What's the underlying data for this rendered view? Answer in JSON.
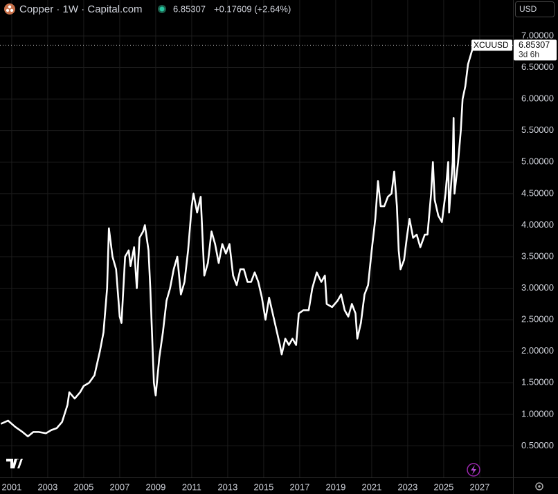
{
  "header": {
    "title": "Copper · 1W · Capital.com",
    "price": "6.85307",
    "change": "+0.17609 (+2.64%)",
    "currency": "USD"
  },
  "chart_data": {
    "type": "line",
    "x": [
      2000.4,
      2000.8,
      2001.2,
      2001.6,
      2001.9,
      2002.2,
      2002.5,
      2002.9,
      2003.2,
      2003.5,
      2003.8,
      2004.1,
      2004.2,
      2004.5,
      2004.8,
      2005.0,
      2005.3,
      2005.6,
      2005.9,
      2006.1,
      2006.3,
      2006.4,
      2006.6,
      2006.8,
      2007.0,
      2007.1,
      2007.3,
      2007.5,
      2007.6,
      2007.8,
      2007.95,
      2008.1,
      2008.3,
      2008.4,
      2008.6,
      2008.7,
      2008.9,
      2009.0,
      2009.2,
      2009.4,
      2009.6,
      2009.8,
      2010.0,
      2010.2,
      2010.4,
      2010.6,
      2010.8,
      2011.0,
      2011.1,
      2011.3,
      2011.5,
      2011.7,
      2011.9,
      2012.1,
      2012.3,
      2012.5,
      2012.7,
      2012.9,
      2013.1,
      2013.3,
      2013.5,
      2013.7,
      2013.9,
      2014.1,
      2014.3,
      2014.5,
      2014.7,
      2014.9,
      2015.1,
      2015.3,
      2015.5,
      2015.7,
      2015.9,
      2016.0,
      2016.2,
      2016.4,
      2016.6,
      2016.8,
      2016.95,
      2017.2,
      2017.5,
      2017.7,
      2017.95,
      2018.2,
      2018.4,
      2018.5,
      2018.8,
      2019.1,
      2019.3,
      2019.5,
      2019.7,
      2019.9,
      2020.1,
      2020.2,
      2020.4,
      2020.6,
      2020.8,
      2021.0,
      2021.2,
      2021.35,
      2021.5,
      2021.7,
      2021.9,
      2022.1,
      2022.25,
      2022.4,
      2022.5,
      2022.6,
      2022.8,
      2022.95,
      2023.1,
      2023.3,
      2023.5,
      2023.7,
      2023.95,
      2024.1,
      2024.3,
      2024.4,
      2024.5,
      2024.7,
      2024.9,
      2025.1,
      2025.25,
      2025.3,
      2025.5,
      2025.55,
      2025.6,
      2025.8,
      2025.95,
      2026.05,
      2026.2,
      2026.35,
      2026.66
    ],
    "series": [
      {
        "name": "XCUUSD",
        "color": "#ffffff",
        "values": [
          0.85,
          0.9,
          0.8,
          0.72,
          0.65,
          0.72,
          0.72,
          0.7,
          0.75,
          0.78,
          0.88,
          1.15,
          1.35,
          1.25,
          1.35,
          1.45,
          1.5,
          1.62,
          2.0,
          2.3,
          3.0,
          3.95,
          3.5,
          3.3,
          2.55,
          2.45,
          3.5,
          3.6,
          3.35,
          3.65,
          3.0,
          3.8,
          3.9,
          4.0,
          3.6,
          3.0,
          1.5,
          1.3,
          1.9,
          2.3,
          2.8,
          3.0,
          3.3,
          3.5,
          2.9,
          3.1,
          3.6,
          4.3,
          4.5,
          4.2,
          4.45,
          3.2,
          3.4,
          3.9,
          3.7,
          3.4,
          3.7,
          3.55,
          3.7,
          3.2,
          3.05,
          3.3,
          3.3,
          3.1,
          3.1,
          3.25,
          3.1,
          2.85,
          2.5,
          2.85,
          2.6,
          2.35,
          2.1,
          1.95,
          2.2,
          2.1,
          2.2,
          2.1,
          2.6,
          2.65,
          2.65,
          3.0,
          3.25,
          3.1,
          3.2,
          2.75,
          2.7,
          2.8,
          2.9,
          2.65,
          2.55,
          2.75,
          2.6,
          2.2,
          2.45,
          2.9,
          3.05,
          3.6,
          4.1,
          4.7,
          4.3,
          4.3,
          4.45,
          4.5,
          4.85,
          4.3,
          3.6,
          3.3,
          3.45,
          3.8,
          4.1,
          3.8,
          3.85,
          3.65,
          3.85,
          3.85,
          4.5,
          5.0,
          4.4,
          4.15,
          4.05,
          4.5,
          5.0,
          4.2,
          5.0,
          5.7,
          4.5,
          5.0,
          5.5,
          6.0,
          6.2,
          6.55,
          6.85307
        ]
      }
    ],
    "xlim": [
      2000.35,
      2028.85
    ],
    "ylim": [
      0,
      7.57
    ],
    "xticks": [
      2001,
      2003,
      2005,
      2007,
      2009,
      2011,
      2013,
      2015,
      2017,
      2019,
      2021,
      2023,
      2025,
      2027
    ],
    "yticks": [
      {
        "value": 0.5,
        "label": "0.50000"
      },
      {
        "value": 1,
        "label": "1.00000"
      },
      {
        "value": 1.5,
        "label": "1.50000"
      },
      {
        "value": 2,
        "label": "2.00000"
      },
      {
        "value": 2.5,
        "label": "2.50000"
      },
      {
        "value": 3,
        "label": "3.00000"
      },
      {
        "value": 3.5,
        "label": "3.50000"
      },
      {
        "value": 4,
        "label": "4.00000"
      },
      {
        "value": 4.5,
        "label": "4.50000"
      },
      {
        "value": 5,
        "label": "5.00000"
      },
      {
        "value": 5.5,
        "label": "5.50000"
      },
      {
        "value": 6,
        "label": "6.00000"
      },
      {
        "value": 6.5,
        "label": "6.50000"
      },
      {
        "value": 7,
        "label": "7.00000"
      }
    ],
    "grid": true,
    "last_value": {
      "value": 6.85307,
      "label": "6.85307",
      "countdown": "3d 6h"
    }
  }
}
